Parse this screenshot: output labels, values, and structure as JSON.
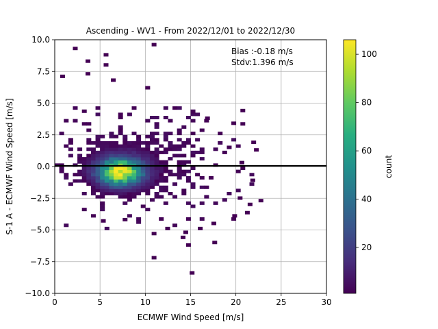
{
  "chart_data": {
    "type": "heatmap",
    "title": "Ascending - WV1 - From 2022/12/01 to 2022/12/30",
    "xlabel": "ECMWF Wind Speed [m/s]",
    "ylabel": "S-1 A - ECMWF Wind Speed [m/s]",
    "xlim": [
      0,
      30
    ],
    "ylim": [
      -10,
      10
    ],
    "xticks": [
      0,
      5,
      10,
      15,
      20,
      25,
      30
    ],
    "yticks": [
      -10.0,
      -7.5,
      -5.0,
      -2.5,
      0.0,
      2.5,
      5.0,
      7.5,
      10.0
    ],
    "xtick_labels": [
      "0",
      "5",
      "10",
      "15",
      "20",
      "25",
      "30"
    ],
    "ytick_labels": [
      "−10.0",
      "−7.5",
      "−5.0",
      "−2.5",
      "0.0",
      "2.5",
      "5.0",
      "7.5",
      "10.0"
    ],
    "grid": true,
    "reference_line_y": 0,
    "annotation": {
      "bias": "Bias :-0.18 m/s",
      "stdv": "Stdv:1.396 m/s"
    },
    "density_peak": {
      "x": 7.2,
      "y": -0.4,
      "count": 105
    },
    "colorbar": {
      "label": "count",
      "colormap": "viridis",
      "range": [
        1,
        106
      ],
      "ticks": [
        20,
        40,
        60,
        80,
        100
      ],
      "tick_labels": [
        "20",
        "40",
        "60",
        "80",
        "100"
      ]
    },
    "outlier_bins": [
      [
        2.0,
        9.2
      ],
      [
        5.4,
        8.7
      ],
      [
        10.7,
        9.5
      ],
      [
        3.4,
        8.2
      ],
      [
        5.4,
        7.9
      ],
      [
        0.6,
        7.0
      ],
      [
        3.4,
        7.2
      ],
      [
        6.2,
        6.7
      ],
      [
        10.0,
        6.1
      ],
      [
        15.0,
        4.2
      ],
      [
        16.6,
        3.7
      ],
      [
        19.5,
        3.3
      ],
      [
        20.5,
        4.3
      ],
      [
        19.0,
        1.4
      ],
      [
        21.7,
        1.8
      ],
      [
        22.0,
        1.2
      ],
      [
        20.4,
        0.2
      ],
      [
        21.6,
        -1.2
      ],
      [
        20.2,
        -2.6
      ],
      [
        22.5,
        -2.8
      ],
      [
        21.3,
        -3.1
      ],
      [
        19.6,
        -4.0
      ],
      [
        17.3,
        -4.6
      ],
      [
        15.8,
        -5.0
      ],
      [
        14.2,
        -5.3
      ],
      [
        12.2,
        -5.0
      ],
      [
        10.7,
        -5.4
      ],
      [
        13.9,
        -5.7
      ],
      [
        17.4,
        -6.1
      ],
      [
        14.5,
        -6.3
      ],
      [
        10.7,
        -7.3
      ],
      [
        14.9,
        -8.5
      ],
      [
        5.1,
        -4.4
      ],
      [
        7.5,
        -4.3
      ]
    ]
  }
}
